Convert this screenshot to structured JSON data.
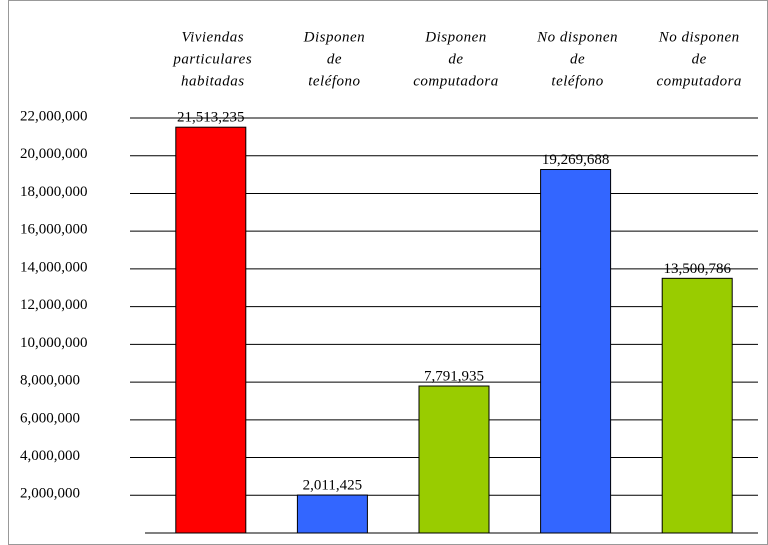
{
  "chart_data": {
    "type": "bar",
    "categories": [
      [
        "Viviendas",
        "particulares",
        "habitadas"
      ],
      [
        "Disponen",
        "de",
        "teléfono"
      ],
      [
        "Disponen",
        "de",
        "computadora"
      ],
      [
        "No disponen",
        "de",
        "teléfono"
      ],
      [
        "No disponen",
        "de",
        "computadora"
      ]
    ],
    "values": [
      21513235,
      2011425,
      7791935,
      19269688,
      13500786
    ],
    "value_labels": [
      "21,513,235",
      "2,011,425",
      "7,791,935",
      "19,269,688",
      "13,500,786"
    ],
    "colors": [
      "#ff0000",
      "#3366ff",
      "#99cc00",
      "#3366ff",
      "#99cc00"
    ],
    "ylim": [
      0,
      22000000
    ],
    "yticks": [
      {
        "value": 2000000,
        "label": "2,000,000"
      },
      {
        "value": 4000000,
        "label": "4,000,000"
      },
      {
        "value": 6000000,
        "label": "6,000,000"
      },
      {
        "value": 8000000,
        "label": "8,000,000"
      },
      {
        "value": 10000000,
        "label": "10,000,000"
      },
      {
        "value": 12000000,
        "label": "12,000,000"
      },
      {
        "value": 14000000,
        "label": "14,000,000"
      },
      {
        "value": 16000000,
        "label": "16,000,000"
      },
      {
        "value": 18000000,
        "label": "18,000,000"
      },
      {
        "value": 20000000,
        "label": "20,000,000"
      },
      {
        "value": 22000000,
        "label": "22,000,000"
      }
    ],
    "grid": true
  }
}
